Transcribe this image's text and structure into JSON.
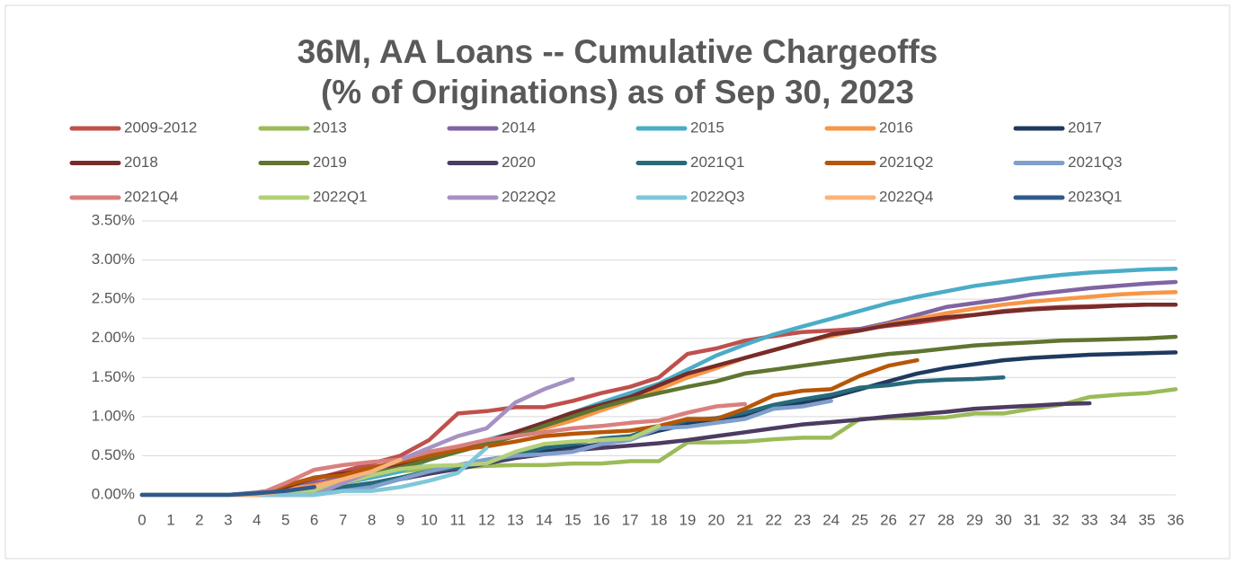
{
  "chart_data": {
    "type": "line",
    "title": "36M, AA Loans -- Cumulative Chargeoffs",
    "subtitle": "(% of Originations) as of Sep 30, 2023",
    "x": [
      0,
      1,
      2,
      3,
      4,
      5,
      6,
      7,
      8,
      9,
      10,
      11,
      12,
      13,
      14,
      15,
      16,
      17,
      18,
      19,
      20,
      21,
      22,
      23,
      24,
      25,
      26,
      27,
      28,
      29,
      30,
      31,
      32,
      33,
      34,
      35,
      36
    ],
    "xlim": [
      0,
      36
    ],
    "xticks": [
      0,
      1,
      2,
      3,
      4,
      5,
      6,
      7,
      8,
      9,
      10,
      11,
      12,
      13,
      14,
      15,
      16,
      17,
      18,
      19,
      20,
      21,
      22,
      23,
      24,
      25,
      26,
      27,
      28,
      29,
      30,
      31,
      32,
      33,
      34,
      35,
      36
    ],
    "ylim": [
      0,
      3.5
    ],
    "yticks": [
      {
        "value": 0,
        "label": "0.00%"
      },
      {
        "value": 0.5,
        "label": "0.50%"
      },
      {
        "value": 1,
        "label": "1.00%"
      },
      {
        "value": 1.5,
        "label": "1.50%"
      },
      {
        "value": 2,
        "label": "2.00%"
      },
      {
        "value": 2.5,
        "label": "2.50%"
      },
      {
        "value": 3,
        "label": "3.00%"
      },
      {
        "value": 3.5,
        "label": "3.50%"
      }
    ],
    "grid": true,
    "legend": "top",
    "series": [
      {
        "name": "2009-2012",
        "color": "#c0504d",
        "values": [
          0,
          0,
          0,
          0,
          0.02,
          0.1,
          0.2,
          0.3,
          0.4,
          0.5,
          0.7,
          1.04,
          1.07,
          1.12,
          1.12,
          1.2,
          1.3,
          1.38,
          1.5,
          1.8,
          1.87,
          1.97,
          2.03,
          2.08,
          2.1,
          2.12,
          2.16,
          2.2,
          2.25,
          2.3,
          2.35,
          2.38,
          2.4,
          2.41,
          2.42,
          2.43,
          2.43
        ]
      },
      {
        "name": "2013",
        "color": "#9bbb59",
        "values": [
          0,
          0,
          0,
          0,
          0,
          0,
          0.05,
          0.15,
          0.22,
          0.3,
          0.33,
          0.35,
          0.37,
          0.38,
          0.38,
          0.4,
          0.4,
          0.43,
          0.43,
          0.67,
          0.67,
          0.68,
          0.71,
          0.73,
          0.73,
          0.97,
          0.98,
          0.98,
          0.99,
          1.04,
          1.04,
          1.1,
          1.15,
          1.25,
          1.28,
          1.3,
          1.35
        ]
      },
      {
        "name": "2014",
        "color": "#8064a2",
        "values": [
          0,
          0,
          0,
          0,
          0.03,
          0.08,
          0.15,
          0.22,
          0.32,
          0.45,
          0.55,
          0.6,
          0.65,
          0.75,
          0.85,
          0.98,
          1.1,
          1.25,
          1.38,
          1.5,
          1.62,
          1.75,
          1.85,
          1.95,
          2.03,
          2.12,
          2.2,
          2.3,
          2.4,
          2.45,
          2.5,
          2.56,
          2.6,
          2.64,
          2.67,
          2.7,
          2.72
        ]
      },
      {
        "name": "2015",
        "color": "#4bacc6",
        "values": [
          0,
          0,
          0,
          0,
          0,
          0.03,
          0.08,
          0.15,
          0.22,
          0.3,
          0.45,
          0.6,
          0.7,
          0.8,
          0.92,
          1.05,
          1.18,
          1.3,
          1.42,
          1.6,
          1.78,
          1.92,
          2.05,
          2.15,
          2.25,
          2.35,
          2.45,
          2.53,
          2.6,
          2.67,
          2.72,
          2.77,
          2.81,
          2.84,
          2.86,
          2.88,
          2.89
        ]
      },
      {
        "name": "2016",
        "color": "#f79646",
        "values": [
          0,
          0,
          0,
          0,
          0.02,
          0.07,
          0.12,
          0.2,
          0.28,
          0.35,
          0.45,
          0.55,
          0.65,
          0.75,
          0.85,
          0.95,
          1.08,
          1.2,
          1.35,
          1.5,
          1.62,
          1.75,
          1.85,
          1.95,
          2.03,
          2.1,
          2.18,
          2.25,
          2.32,
          2.38,
          2.43,
          2.47,
          2.5,
          2.53,
          2.56,
          2.58,
          2.59
        ]
      },
      {
        "name": "2017",
        "color": "#1f3a5f",
        "values": [
          0,
          0,
          0,
          0,
          0,
          0.02,
          0.05,
          0.1,
          0.15,
          0.22,
          0.3,
          0.38,
          0.45,
          0.5,
          0.55,
          0.6,
          0.65,
          0.72,
          0.82,
          0.9,
          0.95,
          1.02,
          1.1,
          1.18,
          1.25,
          1.35,
          1.45,
          1.55,
          1.62,
          1.67,
          1.72,
          1.75,
          1.77,
          1.79,
          1.8,
          1.81,
          1.82
        ]
      },
      {
        "name": "2018",
        "color": "#772c2a",
        "values": [
          0,
          0,
          0,
          0,
          0,
          0.1,
          0.22,
          0.27,
          0.32,
          0.4,
          0.5,
          0.58,
          0.68,
          0.8,
          0.92,
          1.05,
          1.15,
          1.25,
          1.4,
          1.55,
          1.65,
          1.75,
          1.85,
          1.95,
          2.05,
          2.1,
          2.17,
          2.22,
          2.27,
          2.3,
          2.34,
          2.37,
          2.39,
          2.4,
          2.42,
          2.43,
          2.43
        ]
      },
      {
        "name": "2019",
        "color": "#5f7530",
        "values": [
          0,
          0,
          0,
          0,
          0,
          0,
          0.1,
          0.18,
          0.28,
          0.35,
          0.45,
          0.55,
          0.65,
          0.75,
          0.88,
          1.0,
          1.12,
          1.22,
          1.3,
          1.38,
          1.45,
          1.55,
          1.6,
          1.65,
          1.7,
          1.75,
          1.8,
          1.83,
          1.87,
          1.91,
          1.93,
          1.95,
          1.97,
          1.98,
          1.99,
          2.0,
          2.02
        ]
      },
      {
        "name": "2020",
        "color": "#4d3b62",
        "values": [
          0,
          0,
          0,
          0,
          0,
          0,
          0.03,
          0.08,
          0.13,
          0.2,
          0.27,
          0.33,
          0.4,
          0.47,
          0.52,
          0.57,
          0.6,
          0.63,
          0.66,
          0.7,
          0.75,
          0.8,
          0.85,
          0.9,
          0.93,
          0.96,
          1.0,
          1.03,
          1.06,
          1.1,
          1.12,
          1.14,
          1.16,
          1.17,
          null,
          null,
          null
        ]
      },
      {
        "name": "2021Q1",
        "color": "#276a7c",
        "values": [
          0,
          0,
          0,
          0,
          0,
          0,
          0.03,
          0.1,
          0.15,
          0.22,
          0.3,
          0.35,
          0.42,
          0.5,
          0.6,
          0.65,
          0.72,
          0.75,
          0.87,
          0.95,
          0.98,
          1.05,
          1.15,
          1.22,
          1.28,
          1.37,
          1.4,
          1.45,
          1.47,
          1.48,
          1.5,
          null,
          null,
          null,
          null,
          null,
          null
        ]
      },
      {
        "name": "2021Q2",
        "color": "#b65708",
        "values": [
          0,
          0,
          0,
          0,
          0,
          0.12,
          0.22,
          0.25,
          0.35,
          0.42,
          0.5,
          0.58,
          0.62,
          0.68,
          0.75,
          0.78,
          0.8,
          0.82,
          0.88,
          0.97,
          0.97,
          1.1,
          1.27,
          1.33,
          1.35,
          1.52,
          1.65,
          1.72,
          null,
          null,
          null,
          null,
          null,
          null,
          null,
          null,
          null
        ]
      },
      {
        "name": "2021Q3",
        "color": "#7f9fcc",
        "values": [
          0,
          0,
          0,
          0,
          0,
          0,
          0,
          0.05,
          0.1,
          0.2,
          0.3,
          0.38,
          0.45,
          0.5,
          0.52,
          0.55,
          0.65,
          0.7,
          0.85,
          0.87,
          0.92,
          0.97,
          1.1,
          1.13,
          1.2,
          null,
          null,
          null,
          null,
          null,
          null,
          null,
          null,
          null,
          null,
          null,
          null
        ]
      },
      {
        "name": "2021Q4",
        "color": "#d9807e",
        "values": [
          0,
          0,
          0,
          0,
          0,
          0.15,
          0.32,
          0.38,
          0.42,
          0.45,
          0.55,
          0.62,
          0.7,
          0.75,
          0.8,
          0.85,
          0.88,
          0.92,
          0.95,
          1.05,
          1.13,
          1.16,
          null,
          null,
          null,
          null,
          null,
          null,
          null,
          null,
          null,
          null,
          null,
          null,
          null,
          null,
          null
        ]
      },
      {
        "name": "2022Q1",
        "color": "#b3d078",
        "values": [
          0,
          0,
          0,
          0,
          0,
          0,
          0.05,
          0.15,
          0.25,
          0.33,
          0.37,
          0.38,
          0.4,
          0.55,
          0.65,
          0.68,
          0.7,
          0.72,
          0.88,
          null,
          null,
          null,
          null,
          null,
          null,
          null,
          null,
          null,
          null,
          null,
          null,
          null,
          null,
          null,
          null,
          null,
          null
        ]
      },
      {
        "name": "2022Q2",
        "color": "#a692c2",
        "values": [
          0,
          0,
          0,
          0,
          0,
          0,
          0,
          0.15,
          0.3,
          0.45,
          0.6,
          0.75,
          0.85,
          1.18,
          1.35,
          1.48,
          null,
          null,
          null,
          null,
          null,
          null,
          null,
          null,
          null,
          null,
          null,
          null,
          null,
          null,
          null,
          null,
          null,
          null,
          null,
          null,
          null
        ]
      },
      {
        "name": "2022Q3",
        "color": "#7fc7d9",
        "values": [
          0,
          0,
          0,
          0,
          0,
          0,
          0,
          0.05,
          0.05,
          0.1,
          0.18,
          0.28,
          0.6,
          null,
          null,
          null,
          null,
          null,
          null,
          null,
          null,
          null,
          null,
          null,
          null,
          null,
          null,
          null,
          null,
          null,
          null,
          null,
          null,
          null,
          null,
          null,
          null
        ]
      },
      {
        "name": "2022Q4",
        "color": "#f9b47a",
        "values": [
          0,
          0,
          0,
          0,
          0,
          0.05,
          0.1,
          0.2,
          0.3,
          0.45,
          null,
          null,
          null,
          null,
          null,
          null,
          null,
          null,
          null,
          null,
          null,
          null,
          null,
          null,
          null,
          null,
          null,
          null,
          null,
          null,
          null,
          null,
          null,
          null,
          null,
          null,
          null
        ]
      },
      {
        "name": "2023Q1",
        "color": "#2e5a8c",
        "values": [
          0,
          0,
          0,
          0,
          0.02,
          0.05,
          0.1,
          null,
          null,
          null,
          null,
          null,
          null,
          null,
          null,
          null,
          null,
          null,
          null,
          null,
          null,
          null,
          null,
          null,
          null,
          null,
          null,
          null,
          null,
          null,
          null,
          null,
          null,
          null,
          null,
          null,
          null
        ]
      }
    ]
  }
}
